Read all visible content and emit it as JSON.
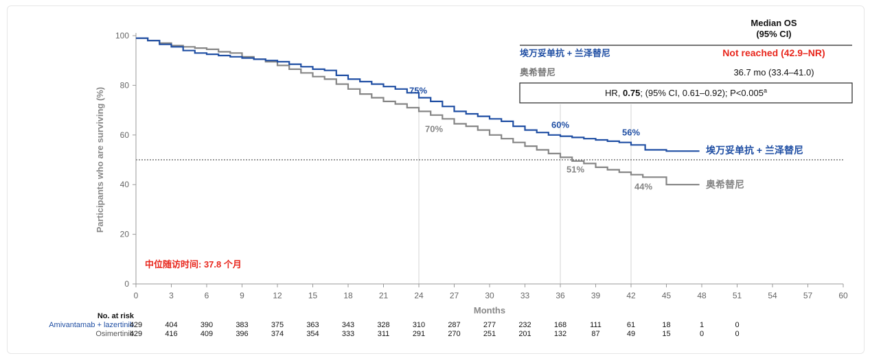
{
  "chart_data": {
    "type": "line",
    "title": "Median OS (95% CI)",
    "xlabel": "Months",
    "ylabel": "Participants who are surviving (%)",
    "xlim": [
      0,
      60
    ],
    "ylim": [
      0,
      100
    ],
    "x_ticks": [
      0,
      3,
      6,
      9,
      12,
      15,
      18,
      21,
      24,
      27,
      30,
      33,
      36,
      39,
      42,
      45,
      48,
      51,
      54,
      57,
      60
    ],
    "y_ticks": [
      0,
      20,
      40,
      60,
      80,
      100
    ],
    "median_reference_line": 50,
    "series": [
      {
        "name": "埃万妥单抗 + 兰泽替尼",
        "color": "#1f4ea3",
        "x": [
          0,
          1,
          2,
          3,
          4,
          5,
          6,
          7,
          8,
          9,
          10,
          11,
          12,
          13,
          14,
          15,
          16,
          17,
          18,
          19,
          20,
          21,
          22,
          23,
          24,
          25,
          26,
          27,
          28,
          29,
          30,
          31,
          32,
          33,
          34,
          35,
          36,
          37,
          38,
          39,
          40,
          41,
          42,
          42.6,
          43.2,
          44,
          45,
          46,
          47,
          47.8
        ],
        "y": [
          99,
          98,
          96.5,
          95.5,
          94,
          93,
          92.5,
          92,
          91.5,
          91,
          90.5,
          90,
          89.5,
          88.5,
          87.5,
          86.5,
          86,
          84,
          82.5,
          81.5,
          80.5,
          79.5,
          78.5,
          77,
          75,
          73.5,
          71.5,
          69.5,
          68.5,
          67.5,
          66.5,
          65.5,
          63.5,
          62,
          61,
          60,
          59.5,
          59,
          58.5,
          58,
          57.5,
          57,
          56,
          56,
          54,
          54,
          53.5,
          53.5,
          53.5,
          53.5
        ],
        "milestones": [
          {
            "x": 24,
            "label": "75%"
          },
          {
            "x": 36,
            "label": "60%"
          },
          {
            "x": 42,
            "label": "56%"
          }
        ]
      },
      {
        "name": "奥希替尼",
        "color": "#858585",
        "x": [
          0,
          1,
          2,
          3,
          4,
          5,
          6,
          7,
          8,
          9,
          10,
          11,
          12,
          13,
          14,
          15,
          16,
          17,
          18,
          19,
          20,
          21,
          22,
          23,
          24,
          25,
          26,
          27,
          28,
          29,
          30,
          31,
          32,
          33,
          34,
          35,
          36,
          37,
          38,
          39,
          40,
          41,
          42,
          43,
          44,
          45,
          46,
          47,
          47.8
        ],
        "y": [
          99,
          98,
          97,
          96,
          95.5,
          95,
          94.5,
          93.5,
          93,
          91.5,
          90.5,
          89.5,
          88,
          86.5,
          85,
          83.5,
          82.5,
          80.5,
          78.5,
          76.5,
          75,
          73.5,
          72.5,
          71,
          69.5,
          68,
          66.5,
          64.5,
          63.5,
          62,
          60,
          58.5,
          57,
          55.5,
          54,
          52.5,
          51,
          49.5,
          48.5,
          47,
          46,
          45,
          44,
          43,
          43,
          40,
          40,
          40,
          40
        ],
        "milestones": [
          {
            "x": 24,
            "label": "70%"
          },
          {
            "x": 36,
            "label": "51%"
          },
          {
            "x": 42,
            "label": "44%"
          }
        ]
      }
    ],
    "end_labels": {
      "blue": "埃万妥单抗 + 兰泽替尼",
      "gray": "奥希替尼"
    },
    "annotation": "中位随访时间: 37.8 个月",
    "legend_table": {
      "header_line1": "Median OS",
      "header_line2": "(95% CI)",
      "rows": [
        {
          "label": "埃万妥单抗 + 兰泽替尼",
          "value": "Not reached (42.9–NR)"
        },
        {
          "label": "奥希替尼",
          "value": "36.7 mo (33.4–41.0)"
        }
      ],
      "hr_prefix": "HR, ",
      "hr_value": "0.75",
      "hr_suffix": "; (95% CI, 0.61–0.92); P<0.005",
      "hr_superscript": "a"
    },
    "risk_table": {
      "title": "No. at risk",
      "rows": [
        {
          "label": "Amivantamab + lazertinib",
          "color": "#1f4ea3",
          "values": [
            "429",
            "404",
            "390",
            "383",
            "375",
            "363",
            "343",
            "328",
            "310",
            "287",
            "277",
            "232",
            "168",
            "111",
            "61",
            "18",
            "1",
            "0"
          ]
        },
        {
          "label": "Osimertinib",
          "color": "#555555",
          "values": [
            "429",
            "416",
            "409",
            "396",
            "374",
            "354",
            "333",
            "311",
            "291",
            "270",
            "251",
            "201",
            "132",
            "87",
            "49",
            "15",
            "0",
            "0"
          ]
        }
      ]
    }
  }
}
